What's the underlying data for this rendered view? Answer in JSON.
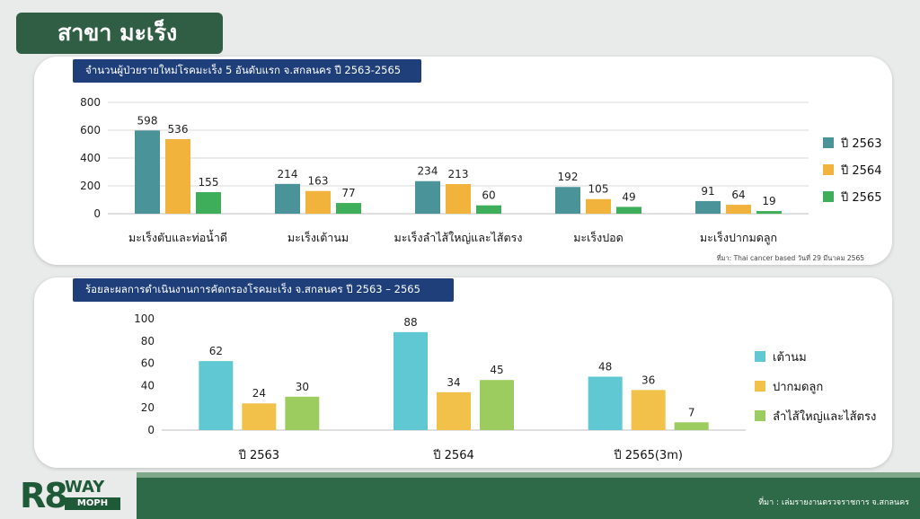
{
  "slide_title": "สาขา มะเร็ง",
  "chart1_title": "จำนวนผู้ป่วยรายใหม่โรคมะเร็ง 5 อันดับแรก จ.สกลนคร ปี 2563-2565",
  "chart1_source": "ที่มา: Thai cancer based วันที่ 29 มีนาคม 2565",
  "chart2_title": "ร้อยละผลการดำเนินงานการคัดกรองโรคมะเร็ง จ.สกลนคร ปี 2563 – 2565",
  "footer_source": "ที่มา : เล่มรายงานตรวจราชการ จ.สกลนคร",
  "logo": {
    "main": "R8",
    "top": "WAY",
    "bottom": "MOPH"
  },
  "chart_data": [
    {
      "type": "bar",
      "title": "จำนวนผู้ป่วยรายใหม่โรคมะเร็ง 5 อันดับแรก จ.สกลนคร ปี 2563-2565",
      "categories": [
        "มะเร็งตับและท่อน้ำดี",
        "มะเร็งเต้านม",
        "มะเร็งลำไส้ใหญ่และไส้ตรง",
        "มะเร็งปอด",
        "มะเร็งปากมดลูก"
      ],
      "series": [
        {
          "name": "ปี 2563",
          "values": [
            598,
            214,
            234,
            192,
            91
          ],
          "color": "#4a9499"
        },
        {
          "name": "ปี 2564",
          "values": [
            536,
            163,
            213,
            105,
            64
          ],
          "color": "#f2b33d"
        },
        {
          "name": "ปี 2565",
          "values": [
            155,
            77,
            60,
            49,
            19
          ],
          "color": "#3fae5a"
        }
      ],
      "ylim": [
        0,
        800
      ],
      "yticks": [
        0,
        200,
        400,
        600,
        800
      ],
      "grid": true,
      "legend": "right"
    },
    {
      "type": "bar",
      "title": "ร้อยละผลการดำเนินงานการคัดกรองโรคมะเร็ง จ.สกลนคร ปี 2563 – 2565",
      "categories": [
        "ปี 2563",
        "ปี 2564",
        "ปี 2565(3m)"
      ],
      "series": [
        {
          "name": "เต้านม",
          "values": [
            62,
            88,
            48
          ],
          "color": "#5fc8d3"
        },
        {
          "name": "ปากมดลูก",
          "values": [
            24,
            34,
            36
          ],
          "color": "#f2c14a"
        },
        {
          "name": "ลำไส้ใหญ่และไส้ตรง",
          "values": [
            30,
            45,
            7
          ],
          "color": "#9ccc5f"
        }
      ],
      "ylim": [
        0,
        100
      ],
      "yticks": [
        0,
        20,
        40,
        60,
        80,
        100
      ],
      "grid": false,
      "legend": "right"
    }
  ]
}
